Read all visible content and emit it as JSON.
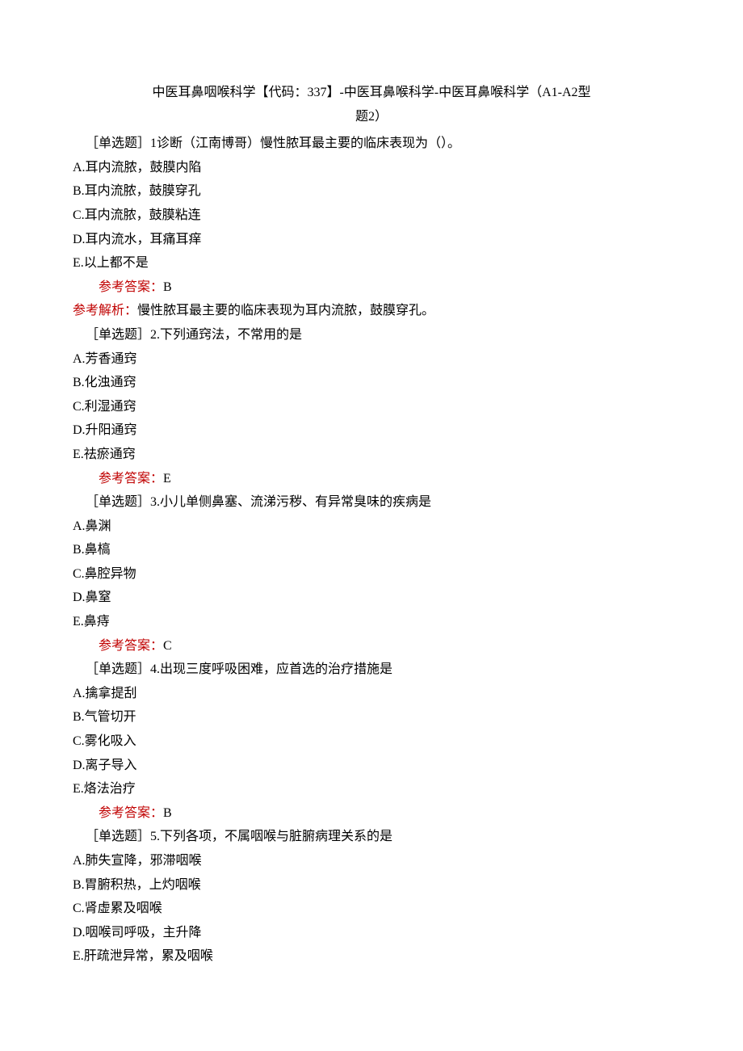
{
  "title": {
    "line1": "中医耳鼻咽喉科学【代码：337】-中医耳鼻喉科学-中医耳鼻喉科学（A1-A2型",
    "line2": "题2）"
  },
  "labels": {
    "questionType": "［单选题］",
    "answerLabel": "参考答案：",
    "analysisLabel": "参考解析："
  },
  "questions": [
    {
      "number": "1",
      "text": "诊断（江南博哥）慢性脓耳最主要的临床表现为（）。",
      "options": [
        "A.耳内流脓，鼓膜内陷",
        "B.耳内流脓，鼓膜穿孔",
        "C.耳内流脓，鼓膜粘连",
        "D.耳内流水，耳痛耳痒",
        "E.以上都不是"
      ],
      "answer": "B",
      "analysis": "慢性脓耳最主要的临床表现为耳内流脓，鼓膜穿孔。"
    },
    {
      "number": "2.",
      "text": "下列通窍法，不常用的是",
      "options": [
        "A.芳香通窍",
        "B.化浊通窍",
        "C.利湿通窍",
        "D.升阳通窍",
        "E.祛瘀通窍"
      ],
      "answer": "E"
    },
    {
      "number": "3.",
      "text": "小儿单侧鼻塞、流涕污秽、有异常臭味的疾病是",
      "options": [
        "A.鼻渊",
        "B.鼻槁",
        "C.鼻腔异物",
        "D.鼻窒",
        "E.鼻痔"
      ],
      "answer": "C"
    },
    {
      "number": "4.",
      "text": "出现三度呼吸困难，应首选的治疗措施是",
      "options": [
        "A.擒拿提刮",
        "B.气管切开",
        "C.雾化吸入",
        "D.离子导入",
        "E.烙法治疗"
      ],
      "answer": "B"
    },
    {
      "number": "5.",
      "text": "下列各项，不属咽喉与脏腑病理关系的是",
      "options": [
        "A.肺失宣降，邪滞咽喉",
        "B.胃腑积热，上灼咽喉",
        "C.肾虚累及咽喉",
        "D.咽喉司呼吸，主升降",
        "E.肝疏泄异常，累及咽喉"
      ]
    }
  ]
}
